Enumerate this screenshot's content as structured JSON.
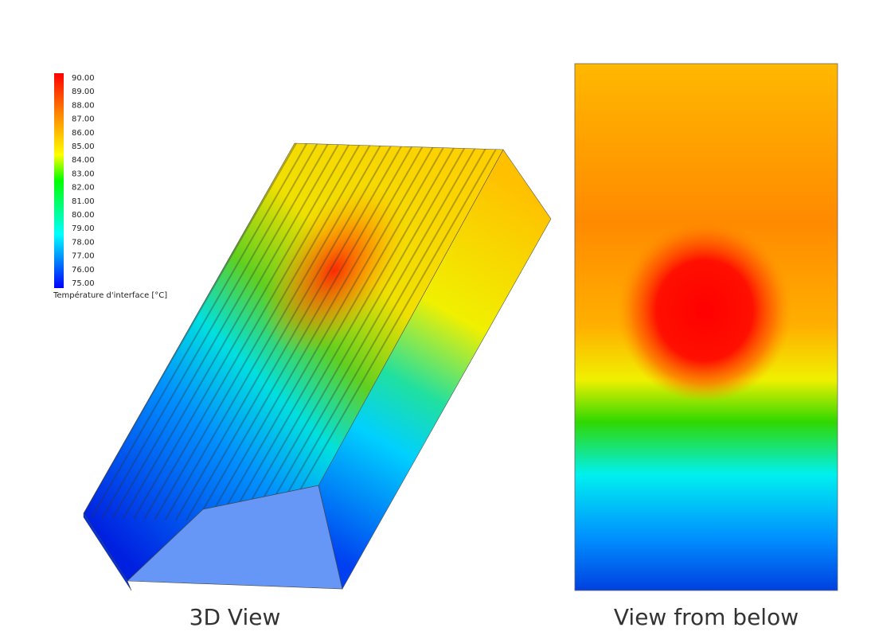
{
  "colorbar": {
    "labels": [
      "90.00",
      "89.00",
      "88.00",
      "87.00",
      "86.00",
      "85.00",
      "84.00",
      "83.00",
      "82.00",
      "81.00",
      "80.00",
      "79.00",
      "78.00",
      "77.00",
      "76.00",
      "75.00"
    ],
    "title": "Température d'interface [°C]"
  },
  "panels": [
    {
      "caption": "3D View"
    },
    {
      "caption": "View from below"
    }
  ]
}
